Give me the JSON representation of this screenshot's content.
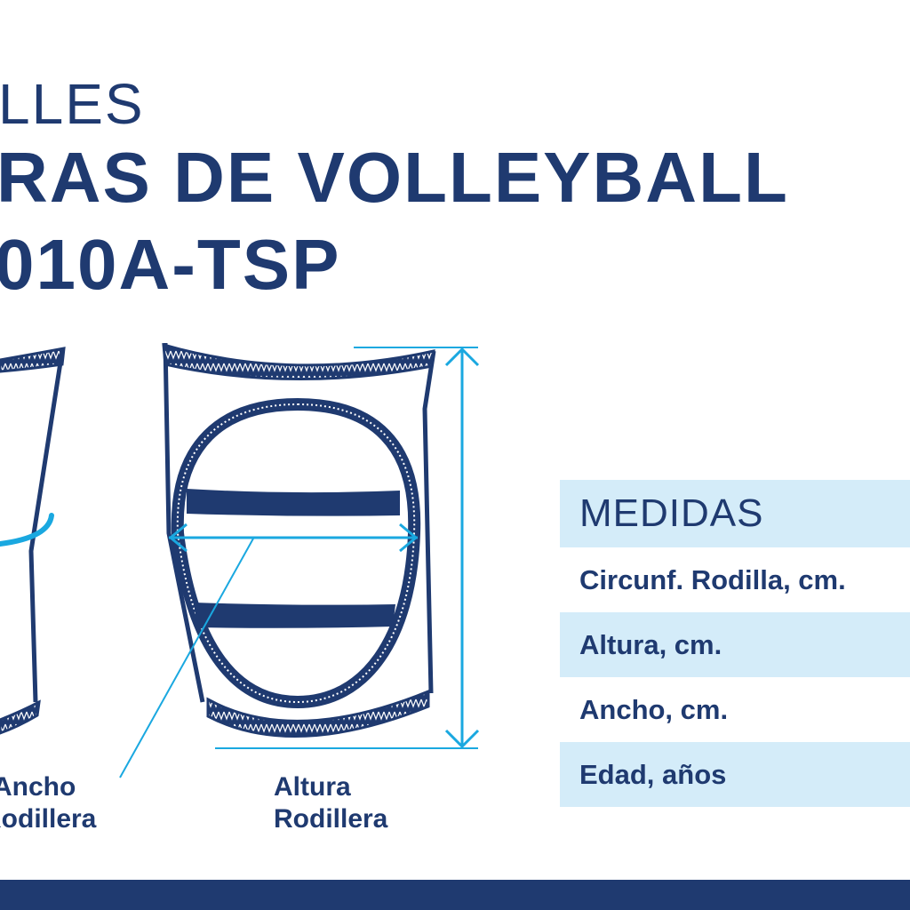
{
  "title": {
    "line1": "LLES",
    "line2": "RAS DE VOLLEYBALL",
    "line3": "010A-TSP"
  },
  "diagram": {
    "label_ancho": [
      "Ancho",
      "Rodillera"
    ],
    "label_altura": [
      "Altura",
      "Rodillera"
    ]
  },
  "table": {
    "header": "MEDIDAS",
    "rows": [
      "Circunf. Rodilla, cm.",
      "Altura, cm.",
      "Ancho, cm.",
      "Edad, años"
    ]
  },
  "colors": {
    "navy": "#1f3a70",
    "accent": "#1aa8e0",
    "row_fill": "#d4ecf9"
  }
}
